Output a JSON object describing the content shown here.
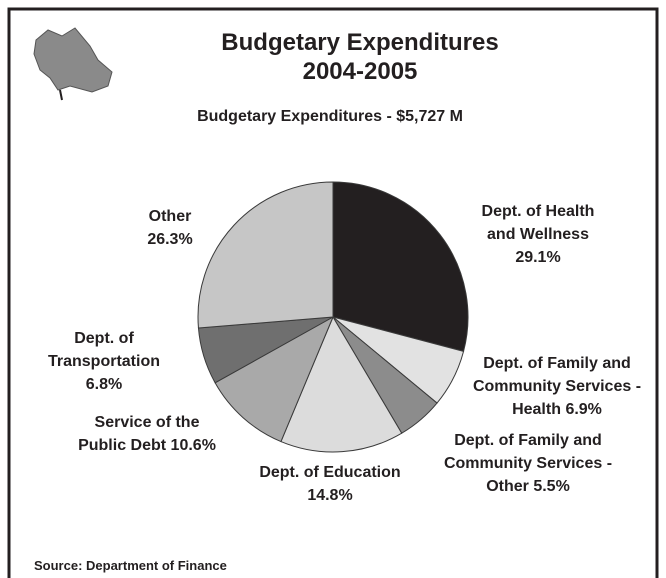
{
  "header": {
    "title": "Budgetary Expenditures",
    "subtitle": "2004-2005"
  },
  "chart_data": {
    "type": "pie",
    "title": "Budgetary Expenditures - $5,727 M",
    "categories": [
      "Dept. of Health and Wellness",
      "Dept. of Family and Community Services - Health",
      "Dept. of Family and Community Services - Other",
      "Dept. of Education",
      "Service of the Public Debt",
      "Dept. of Transportation",
      "Other"
    ],
    "values": [
      29.1,
      6.9,
      5.5,
      14.8,
      10.6,
      6.8,
      26.3
    ],
    "value_labels": [
      "29.1%",
      "6.9%",
      "5.5%",
      "14.8%",
      "10.6%",
      "6.8%",
      "26.3%"
    ],
    "colors": [
      "#231f20",
      "#e2e2e2",
      "#8c8c8c",
      "#dcdcdc",
      "#a9a9a9",
      "#6f6f6f",
      "#c6c6c6"
    ]
  },
  "source": "Source: Department of Finance"
}
